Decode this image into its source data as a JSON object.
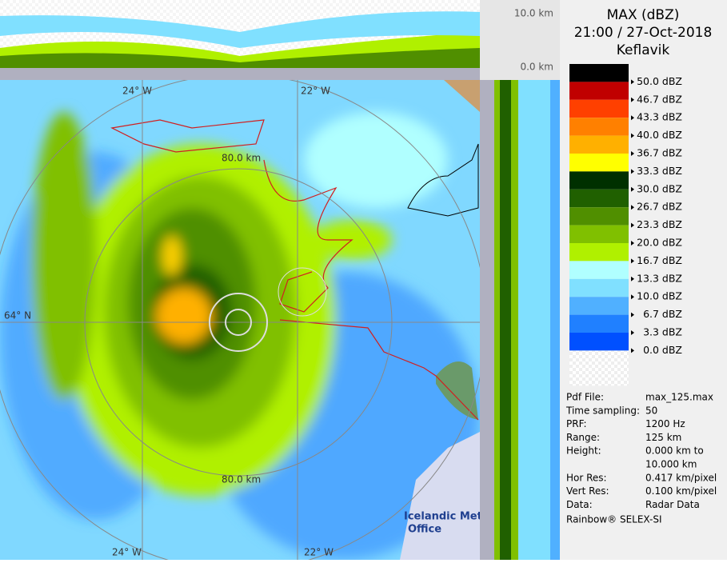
{
  "header": {
    "title": "MAX (dBZ)",
    "time": "21:00 / 27-Oct-2018",
    "site": "Keflavik"
  },
  "height_axis": {
    "top": "10.0 km",
    "bottom": "0.0 km"
  },
  "map_labels": {
    "lon_left_top": "24° W",
    "lon_right_top": "22° W",
    "lon_left_bottom": "24° W",
    "lon_right_bottom": "22° W",
    "lat": "64° N",
    "ring_top": "80.0 km",
    "ring_bottom": "80.0 km"
  },
  "logo": {
    "line1": "Icelandic Met",
    "line2": "Office"
  },
  "legend": {
    "colors": [
      "#000000",
      "#c00000",
      "#ff4000",
      "#ff8000",
      "#ffb000",
      "#ffff00",
      "#003000",
      "#206000",
      "#508f00",
      "#80c000",
      "#b0f000",
      "#b0ffff",
      "#80e0ff",
      "#50b0ff",
      "#2080ff",
      "#0050ff"
    ],
    "labels": [
      "50.0 dBZ",
      "46.7 dBZ",
      "43.3 dBZ",
      "40.0 dBZ",
      "36.7 dBZ",
      "33.3 dBZ",
      "30.0 dBZ",
      "26.7 dBZ",
      "23.3 dBZ",
      "20.0 dBZ",
      "16.7 dBZ",
      "13.3 dBZ",
      "10.0 dBZ",
      "6.7 dBZ",
      "3.3 dBZ",
      "0.0 dBZ"
    ]
  },
  "info": [
    {
      "label": "Pdf File:",
      "value": [
        "max_125.max"
      ]
    },
    {
      "label": "Time sampling:",
      "value": [
        "50"
      ]
    },
    {
      "label": "PRF:",
      "value": [
        "1200 Hz"
      ]
    },
    {
      "label": "Range:",
      "value": [
        "125 km"
      ]
    },
    {
      "label": "Height:",
      "value": [
        "0.000 km to",
        "10.000 km"
      ]
    },
    {
      "label": "Hor Res:",
      "value": [
        "0.417 km/pixel"
      ]
    },
    {
      "label": "Vert Res:",
      "value": [
        "0.100 km/pixel"
      ]
    },
    {
      "label": "Data:",
      "value": [
        "Radar Data"
      ]
    }
  ],
  "footer": "Rainbow® SELEX-SI"
}
